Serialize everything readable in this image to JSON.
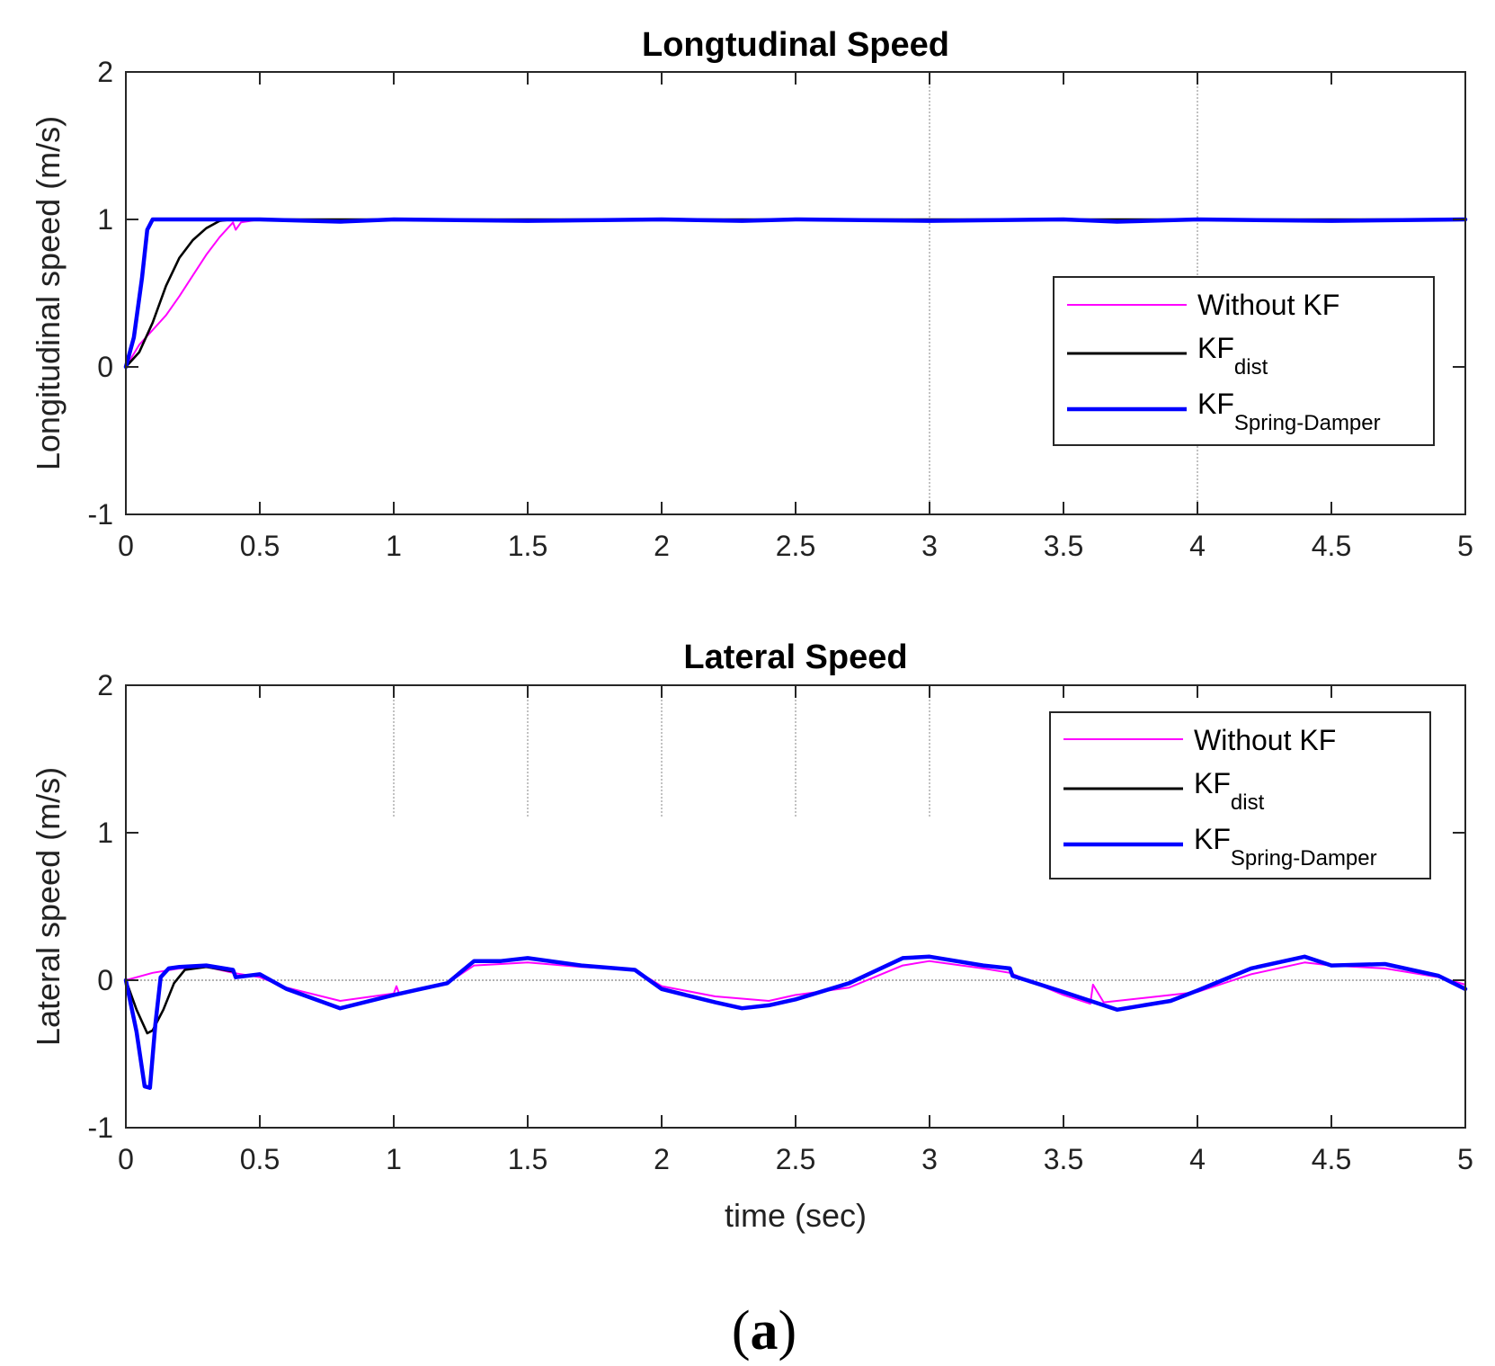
{
  "caption": {
    "open": "(",
    "letter": "a",
    "close": ")"
  },
  "colors": {
    "without_kf": "#ff00ff",
    "kf_dist": "#000000",
    "kf_spring_damper": "#0000ff"
  },
  "chart_data": [
    {
      "type": "line",
      "title": "Longtudinal Speed",
      "xlabel": "",
      "ylabel": "Longitudinal speed (m/s)",
      "xlim": [
        0,
        5
      ],
      "ylim": [
        -1,
        2
      ],
      "xticks": [
        0,
        0.5,
        1,
        1.5,
        2,
        2.5,
        3,
        3.5,
        4,
        4.5,
        5
      ],
      "xtick_labels": [
        "0",
        "0.5",
        "1",
        "1.5",
        "2",
        "2.5",
        "3",
        "3.5",
        "4",
        "4.5",
        "5"
      ],
      "yticks": [
        -1,
        0,
        1,
        2
      ],
      "ytick_labels": [
        "-1",
        "0",
        "1",
        "2"
      ],
      "legend_position": "center-right",
      "vertical_reference_lines": [
        3,
        4
      ],
      "series": [
        {
          "name": "Without KF",
          "legend_main": "Without KF",
          "legend_sub": "",
          "color": "#ff00ff",
          "style": "thin",
          "x": [
            0,
            0.05,
            0.1,
            0.15,
            0.2,
            0.25,
            0.3,
            0.35,
            0.4,
            0.41,
            0.43,
            0.5,
            1.0,
            2.0,
            3.0,
            4.0,
            5.0
          ],
          "y": [
            0,
            0.15,
            0.25,
            0.35,
            0.48,
            0.62,
            0.76,
            0.88,
            0.98,
            0.93,
            0.98,
            1.0,
            1.0,
            1.0,
            1.0,
            1.0,
            1.0
          ]
        },
        {
          "name": "KFdist",
          "legend_main": "KF",
          "legend_sub": "dist",
          "color": "#000000",
          "style": "medium",
          "x": [
            0,
            0.05,
            0.1,
            0.15,
            0.2,
            0.25,
            0.3,
            0.35,
            0.4,
            0.5,
            1.0,
            2.0,
            3.0,
            4.0,
            5.0
          ],
          "y": [
            0,
            0.1,
            0.3,
            0.55,
            0.74,
            0.86,
            0.94,
            0.99,
            1.0,
            1.0,
            1.0,
            1.0,
            1.0,
            1.0,
            1.0
          ]
        },
        {
          "name": "KFSpring-Damper",
          "legend_main": "KF",
          "legend_sub": "Spring-Damper",
          "color": "#0000ff",
          "style": "thick",
          "x": [
            0,
            0.03,
            0.06,
            0.08,
            0.1,
            0.12,
            0.5,
            0.8,
            1.0,
            1.5,
            2.0,
            2.3,
            2.5,
            3.0,
            3.5,
            3.7,
            4.0,
            4.5,
            5.0
          ],
          "y": [
            0,
            0.2,
            0.6,
            0.93,
            1.0,
            1.0,
            1.0,
            0.985,
            1.0,
            0.99,
            1.0,
            0.99,
            1.0,
            0.99,
            1.0,
            0.985,
            1.0,
            0.99,
            1.0
          ]
        }
      ]
    },
    {
      "type": "line",
      "title": "Lateral Speed",
      "xlabel": "time (sec)",
      "ylabel": "Lateral speed (m/s)",
      "xlim": [
        0,
        5
      ],
      "ylim": [
        -1,
        2
      ],
      "xticks": [
        0,
        0.5,
        1,
        1.5,
        2,
        2.5,
        3,
        3.5,
        4,
        4.5,
        5
      ],
      "xtick_labels": [
        "0",
        "0.5",
        "1",
        "1.5",
        "2",
        "2.5",
        "3",
        "3.5",
        "4",
        "4.5",
        "5"
      ],
      "yticks": [
        -1,
        0,
        1,
        2
      ],
      "ytick_labels": [
        "-1",
        "0",
        "1",
        "2"
      ],
      "legend_position": "top-right",
      "zero_reference_line": true,
      "vertical_reference_segments": [
        1,
        1.5,
        2,
        2.5,
        3
      ],
      "series": [
        {
          "name": "Without KF",
          "legend_main": "Without KF",
          "legend_sub": "",
          "color": "#ff00ff",
          "style": "thin",
          "x": [
            0,
            0.1,
            0.2,
            0.3,
            0.4,
            0.5,
            0.6,
            0.8,
            1.0,
            1.01,
            1.02,
            1.2,
            1.3,
            1.4,
            1.5,
            1.7,
            1.9,
            2.0,
            2.2,
            2.4,
            2.5,
            2.7,
            2.9,
            3.0,
            3.2,
            3.3,
            3.5,
            3.6,
            3.61,
            3.65,
            3.8,
            4.0,
            4.2,
            4.4,
            4.5,
            4.7,
            4.9,
            5.0
          ],
          "y": [
            0,
            0.05,
            0.08,
            0.09,
            0.05,
            0.02,
            -0.05,
            -0.14,
            -0.09,
            -0.04,
            -0.09,
            -0.02,
            0.1,
            0.11,
            0.12,
            0.09,
            0.07,
            -0.04,
            -0.11,
            -0.14,
            -0.1,
            -0.05,
            0.1,
            0.13,
            0.08,
            0.05,
            -0.1,
            -0.16,
            -0.03,
            -0.15,
            -0.12,
            -0.08,
            0.04,
            0.12,
            0.1,
            0.08,
            0.02,
            -0.03
          ]
        },
        {
          "name": "KFdist",
          "legend_main": "KF",
          "legend_sub": "dist",
          "color": "#000000",
          "style": "medium",
          "x": [
            0,
            0.04,
            0.08,
            0.1,
            0.14,
            0.18,
            0.22,
            0.3,
            0.4
          ],
          "y": [
            0,
            -0.2,
            -0.36,
            -0.34,
            -0.2,
            -0.02,
            0.07,
            0.09,
            0.06
          ]
        },
        {
          "name": "KFSpring-Damper",
          "legend_main": "KF",
          "legend_sub": "Spring-Damper",
          "color": "#0000ff",
          "style": "thick",
          "x": [
            0,
            0.04,
            0.07,
            0.09,
            0.11,
            0.13,
            0.16,
            0.2,
            0.3,
            0.4,
            0.41,
            0.5,
            0.6,
            0.8,
            1.0,
            1.1,
            1.2,
            1.3,
            1.4,
            1.5,
            1.7,
            1.9,
            2.0,
            2.2,
            2.3,
            2.4,
            2.5,
            2.7,
            2.9,
            3.0,
            3.2,
            3.3,
            3.31,
            3.5,
            3.7,
            3.8,
            3.9,
            4.0,
            4.2,
            4.4,
            4.5,
            4.7,
            4.9,
            5.0
          ],
          "y": [
            0,
            -0.35,
            -0.72,
            -0.73,
            -0.3,
            0.02,
            0.08,
            0.09,
            0.1,
            0.07,
            0.02,
            0.04,
            -0.06,
            -0.19,
            -0.1,
            -0.06,
            -0.02,
            0.13,
            0.13,
            0.15,
            0.1,
            0.07,
            -0.06,
            -0.15,
            -0.19,
            -0.17,
            -0.13,
            -0.02,
            0.15,
            0.16,
            0.1,
            0.08,
            0.03,
            -0.08,
            -0.2,
            -0.17,
            -0.14,
            -0.07,
            0.08,
            0.16,
            0.1,
            0.11,
            0.03,
            -0.06
          ]
        }
      ]
    }
  ]
}
